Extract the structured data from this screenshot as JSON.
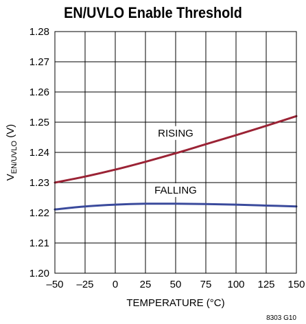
{
  "chart_data": {
    "type": "line",
    "title": "EN/UVLO Enable Threshold",
    "xlabel": "TEMPERATURE (°C)",
    "ylabel_main": "V",
    "ylabel_sub": "EN/UVLO",
    "ylabel_unit": "(V)",
    "xlim": [
      -50,
      150
    ],
    "ylim": [
      1.2,
      1.28
    ],
    "xticks": [
      -50,
      -25,
      0,
      25,
      50,
      75,
      100,
      125,
      150
    ],
    "xtick_labels": [
      "–50",
      "–25",
      "0",
      "25",
      "50",
      "75",
      "100",
      "125",
      "150"
    ],
    "yticks": [
      1.2,
      1.21,
      1.22,
      1.23,
      1.24,
      1.25,
      1.26,
      1.27,
      1.28
    ],
    "ytick_labels": [
      "1.20",
      "1.21",
      "1.22",
      "1.23",
      "1.24",
      "1.25",
      "1.26",
      "1.27",
      "1.28"
    ],
    "grid": true,
    "footnote": "8303 G10",
    "series": [
      {
        "name": "RISING",
        "color": "#9b2335",
        "x": [
          -50,
          -25,
          0,
          25,
          50,
          75,
          100,
          125,
          150
        ],
        "y": [
          1.23,
          1.232,
          1.2343,
          1.2369,
          1.2397,
          1.2427,
          1.2457,
          1.2488,
          1.252
        ]
      },
      {
        "name": "FALLING",
        "color": "#3a4a9c",
        "x": [
          -50,
          -25,
          0,
          25,
          50,
          75,
          100,
          125,
          150
        ],
        "y": [
          1.2211,
          1.2221,
          1.2227,
          1.223,
          1.223,
          1.2229,
          1.2227,
          1.2224,
          1.2221
        ]
      }
    ]
  }
}
